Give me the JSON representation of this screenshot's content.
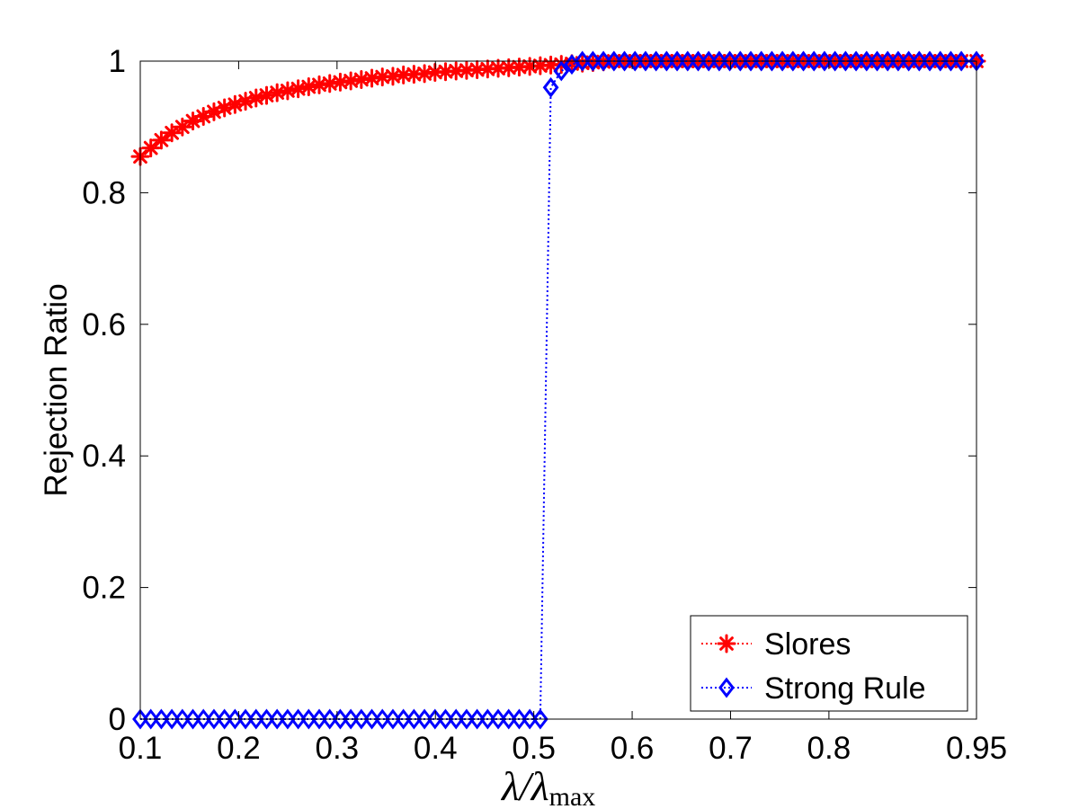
{
  "chart_data": {
    "type": "line",
    "xlabel": {
      "main": "λ/λ",
      "sub": "max"
    },
    "ylabel": "Rejection Ratio",
    "xlim": [
      0.1,
      0.95
    ],
    "ylim": [
      0,
      1
    ],
    "xticks": [
      0.1,
      0.2,
      0.3,
      0.4,
      0.5,
      0.6,
      0.7,
      0.8,
      0.95
    ],
    "xtick_labels": [
      "0.1",
      "0.2",
      "0.3",
      "0.4",
      "0.5",
      "0.6",
      "0.7",
      "0.8",
      "0.95"
    ],
    "yticks": [
      0,
      0.2,
      0.4,
      0.6,
      0.8,
      1
    ],
    "ytick_labels": [
      "0",
      "0.2",
      "0.4",
      "0.6",
      "0.8",
      "1"
    ],
    "grid": false,
    "legend_position": "bottom-right",
    "series": [
      {
        "name": "Slores",
        "color": "#ff0000",
        "marker": "asterisk",
        "line_style": "dotted",
        "x": [
          0.1,
          0.1107,
          0.1214,
          0.1321,
          0.1428,
          0.1535,
          0.1642,
          0.1749,
          0.1856,
          0.1963,
          0.207,
          0.2177,
          0.2284,
          0.2391,
          0.2498,
          0.2605,
          0.2712,
          0.2819,
          0.2926,
          0.3033,
          0.314,
          0.3247,
          0.3354,
          0.3461,
          0.3568,
          0.3675,
          0.3782,
          0.3889,
          0.3996,
          0.4103,
          0.421,
          0.4317,
          0.4424,
          0.4531,
          0.4638,
          0.4745,
          0.4852,
          0.4959,
          0.5066,
          0.5173,
          0.528,
          0.5387,
          0.5494,
          0.5601,
          0.5708,
          0.5815,
          0.5922,
          0.6029,
          0.6136,
          0.6243,
          0.635,
          0.6457,
          0.6564,
          0.6671,
          0.6778,
          0.6885,
          0.6992,
          0.7099,
          0.7206,
          0.7313,
          0.742,
          0.7527,
          0.7634,
          0.7741,
          0.7848,
          0.7955,
          0.8062,
          0.8169,
          0.8276,
          0.8383,
          0.849,
          0.8597,
          0.8704,
          0.8811,
          0.8918,
          0.9025,
          0.9132,
          0.9239,
          0.9346,
          0.95
        ],
        "y": [
          0.855,
          0.868,
          0.88,
          0.891,
          0.9,
          0.909,
          0.916,
          0.923,
          0.929,
          0.934,
          0.939,
          0.944,
          0.948,
          0.952,
          0.955,
          0.958,
          0.961,
          0.964,
          0.966,
          0.968,
          0.97,
          0.972,
          0.974,
          0.976,
          0.977,
          0.979,
          0.98,
          0.981,
          0.983,
          0.984,
          0.985,
          0.986,
          0.987,
          0.988,
          0.989,
          0.99,
          0.991,
          0.992,
          0.993,
          0.994,
          0.995,
          0.996,
          0.997,
          0.998,
          0.999,
          1,
          1,
          1,
          1,
          1,
          1,
          1,
          1,
          1,
          1,
          1,
          1,
          1,
          1,
          1,
          1,
          1,
          1,
          1,
          1,
          1,
          1,
          1,
          1,
          1,
          1,
          1,
          1,
          1,
          1,
          1,
          1,
          1,
          1,
          1
        ]
      },
      {
        "name": "Strong Rule",
        "color": "#0000ff",
        "marker": "diamond",
        "line_style": "dotted",
        "x": [
          0.1,
          0.1107,
          0.1214,
          0.1321,
          0.1428,
          0.1535,
          0.1642,
          0.1749,
          0.1856,
          0.1963,
          0.207,
          0.2177,
          0.2284,
          0.2391,
          0.2498,
          0.2605,
          0.2712,
          0.2819,
          0.2926,
          0.3033,
          0.314,
          0.3247,
          0.3354,
          0.3461,
          0.3568,
          0.3675,
          0.3782,
          0.3889,
          0.3996,
          0.4103,
          0.421,
          0.4317,
          0.4424,
          0.4531,
          0.4638,
          0.4745,
          0.4852,
          0.4959,
          0.5066,
          0.5173,
          0.528,
          0.5387,
          0.5494,
          0.5601,
          0.5708,
          0.5815,
          0.5922,
          0.6029,
          0.6136,
          0.6243,
          0.635,
          0.6457,
          0.6564,
          0.6671,
          0.6778,
          0.6885,
          0.6992,
          0.7099,
          0.7206,
          0.7313,
          0.742,
          0.7527,
          0.7634,
          0.7741,
          0.7848,
          0.7955,
          0.8062,
          0.8169,
          0.8276,
          0.8383,
          0.849,
          0.8597,
          0.8704,
          0.8811,
          0.8918,
          0.9025,
          0.9132,
          0.9239,
          0.9346,
          0.95
        ],
        "y": [
          0,
          0,
          0,
          0,
          0,
          0,
          0,
          0,
          0,
          0,
          0,
          0,
          0,
          0,
          0,
          0,
          0,
          0,
          0,
          0,
          0,
          0,
          0,
          0,
          0,
          0,
          0,
          0,
          0,
          0,
          0,
          0,
          0,
          0,
          0,
          0,
          0,
          0,
          0,
          0.96,
          0.985,
          0.995,
          1,
          1,
          1,
          1,
          1,
          1,
          1,
          1,
          1,
          1,
          1,
          1,
          1,
          1,
          1,
          1,
          1,
          1,
          1,
          1,
          1,
          1,
          1,
          1,
          1,
          1,
          1,
          1,
          1,
          1,
          1,
          1,
          1,
          1,
          1,
          1,
          1,
          1
        ]
      }
    ]
  }
}
